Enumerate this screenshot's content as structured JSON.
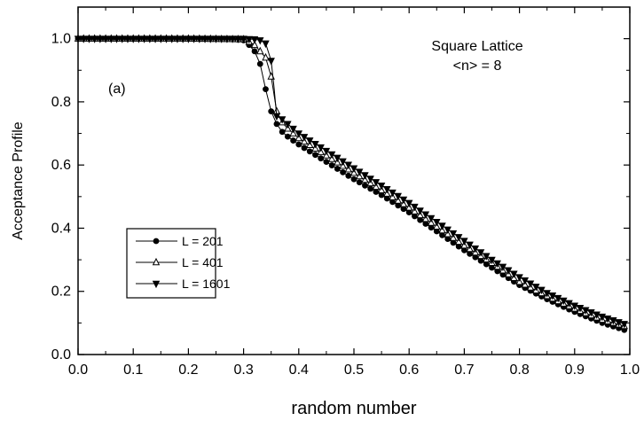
{
  "chart_data": {
    "type": "line",
    "xlabel": "random number",
    "ylabel": "Acceptance Profile",
    "xlim": [
      0.0,
      1.0
    ],
    "ylim": [
      0.0,
      1.1
    ],
    "xticks": [
      "0.0",
      "0.1",
      "0.2",
      "0.3",
      "0.4",
      "0.5",
      "0.6",
      "0.7",
      "0.8",
      "0.9",
      "1.0"
    ],
    "yticks": [
      "0.0",
      "0.2",
      "0.4",
      "0.6",
      "0.8",
      "1.0"
    ],
    "annotations": {
      "panel": "(a)",
      "lattice": "Square Lattice",
      "degree": "<n> = 8"
    },
    "legend": {
      "position": "lower-left",
      "frame": true
    },
    "grid": false,
    "series": [
      {
        "name": "L = 201",
        "marker": "filled-circle",
        "x": [
          0.0,
          0.1,
          0.2,
          0.28,
          0.3,
          0.31,
          0.32,
          0.33,
          0.34,
          0.35,
          0.36,
          0.37,
          0.38,
          0.4,
          0.45,
          0.5,
          0.55,
          0.6,
          0.65,
          0.7,
          0.75,
          0.8,
          0.85,
          0.9,
          0.95,
          0.99
        ],
        "y": [
          1.0,
          1.0,
          1.0,
          0.999,
          0.995,
          0.98,
          0.96,
          0.92,
          0.84,
          0.77,
          0.73,
          0.705,
          0.69,
          0.665,
          0.61,
          0.555,
          0.505,
          0.45,
          0.39,
          0.33,
          0.275,
          0.22,
          0.175,
          0.135,
          0.1,
          0.078
        ]
      },
      {
        "name": "L = 401",
        "marker": "open-triangle-up",
        "x": [
          0.0,
          0.1,
          0.2,
          0.3,
          0.31,
          0.32,
          0.33,
          0.34,
          0.35,
          0.36,
          0.37,
          0.38,
          0.4,
          0.45,
          0.5,
          0.55,
          0.6,
          0.65,
          0.7,
          0.75,
          0.8,
          0.85,
          0.9,
          0.95,
          0.99
        ],
        "y": [
          1.0,
          1.0,
          1.0,
          0.998,
          0.99,
          0.98,
          0.96,
          0.94,
          0.88,
          0.77,
          0.735,
          0.715,
          0.685,
          0.63,
          0.575,
          0.52,
          0.465,
          0.405,
          0.345,
          0.29,
          0.23,
          0.185,
          0.145,
          0.11,
          0.09
        ]
      },
      {
        "name": "L = 1601",
        "marker": "filled-triangle-down",
        "x": [
          0.0,
          0.1,
          0.2,
          0.3,
          0.32,
          0.33,
          0.34,
          0.35,
          0.355,
          0.36,
          0.37,
          0.38,
          0.4,
          0.45,
          0.5,
          0.55,
          0.6,
          0.65,
          0.7,
          0.75,
          0.8,
          0.85,
          0.9,
          0.95,
          0.99
        ],
        "y": [
          1.0,
          1.0,
          1.0,
          1.0,
          0.998,
          0.995,
          0.985,
          0.93,
          0.85,
          0.755,
          0.745,
          0.73,
          0.7,
          0.645,
          0.59,
          0.535,
          0.48,
          0.42,
          0.36,
          0.3,
          0.245,
          0.195,
          0.155,
          0.12,
          0.097
        ]
      }
    ]
  }
}
